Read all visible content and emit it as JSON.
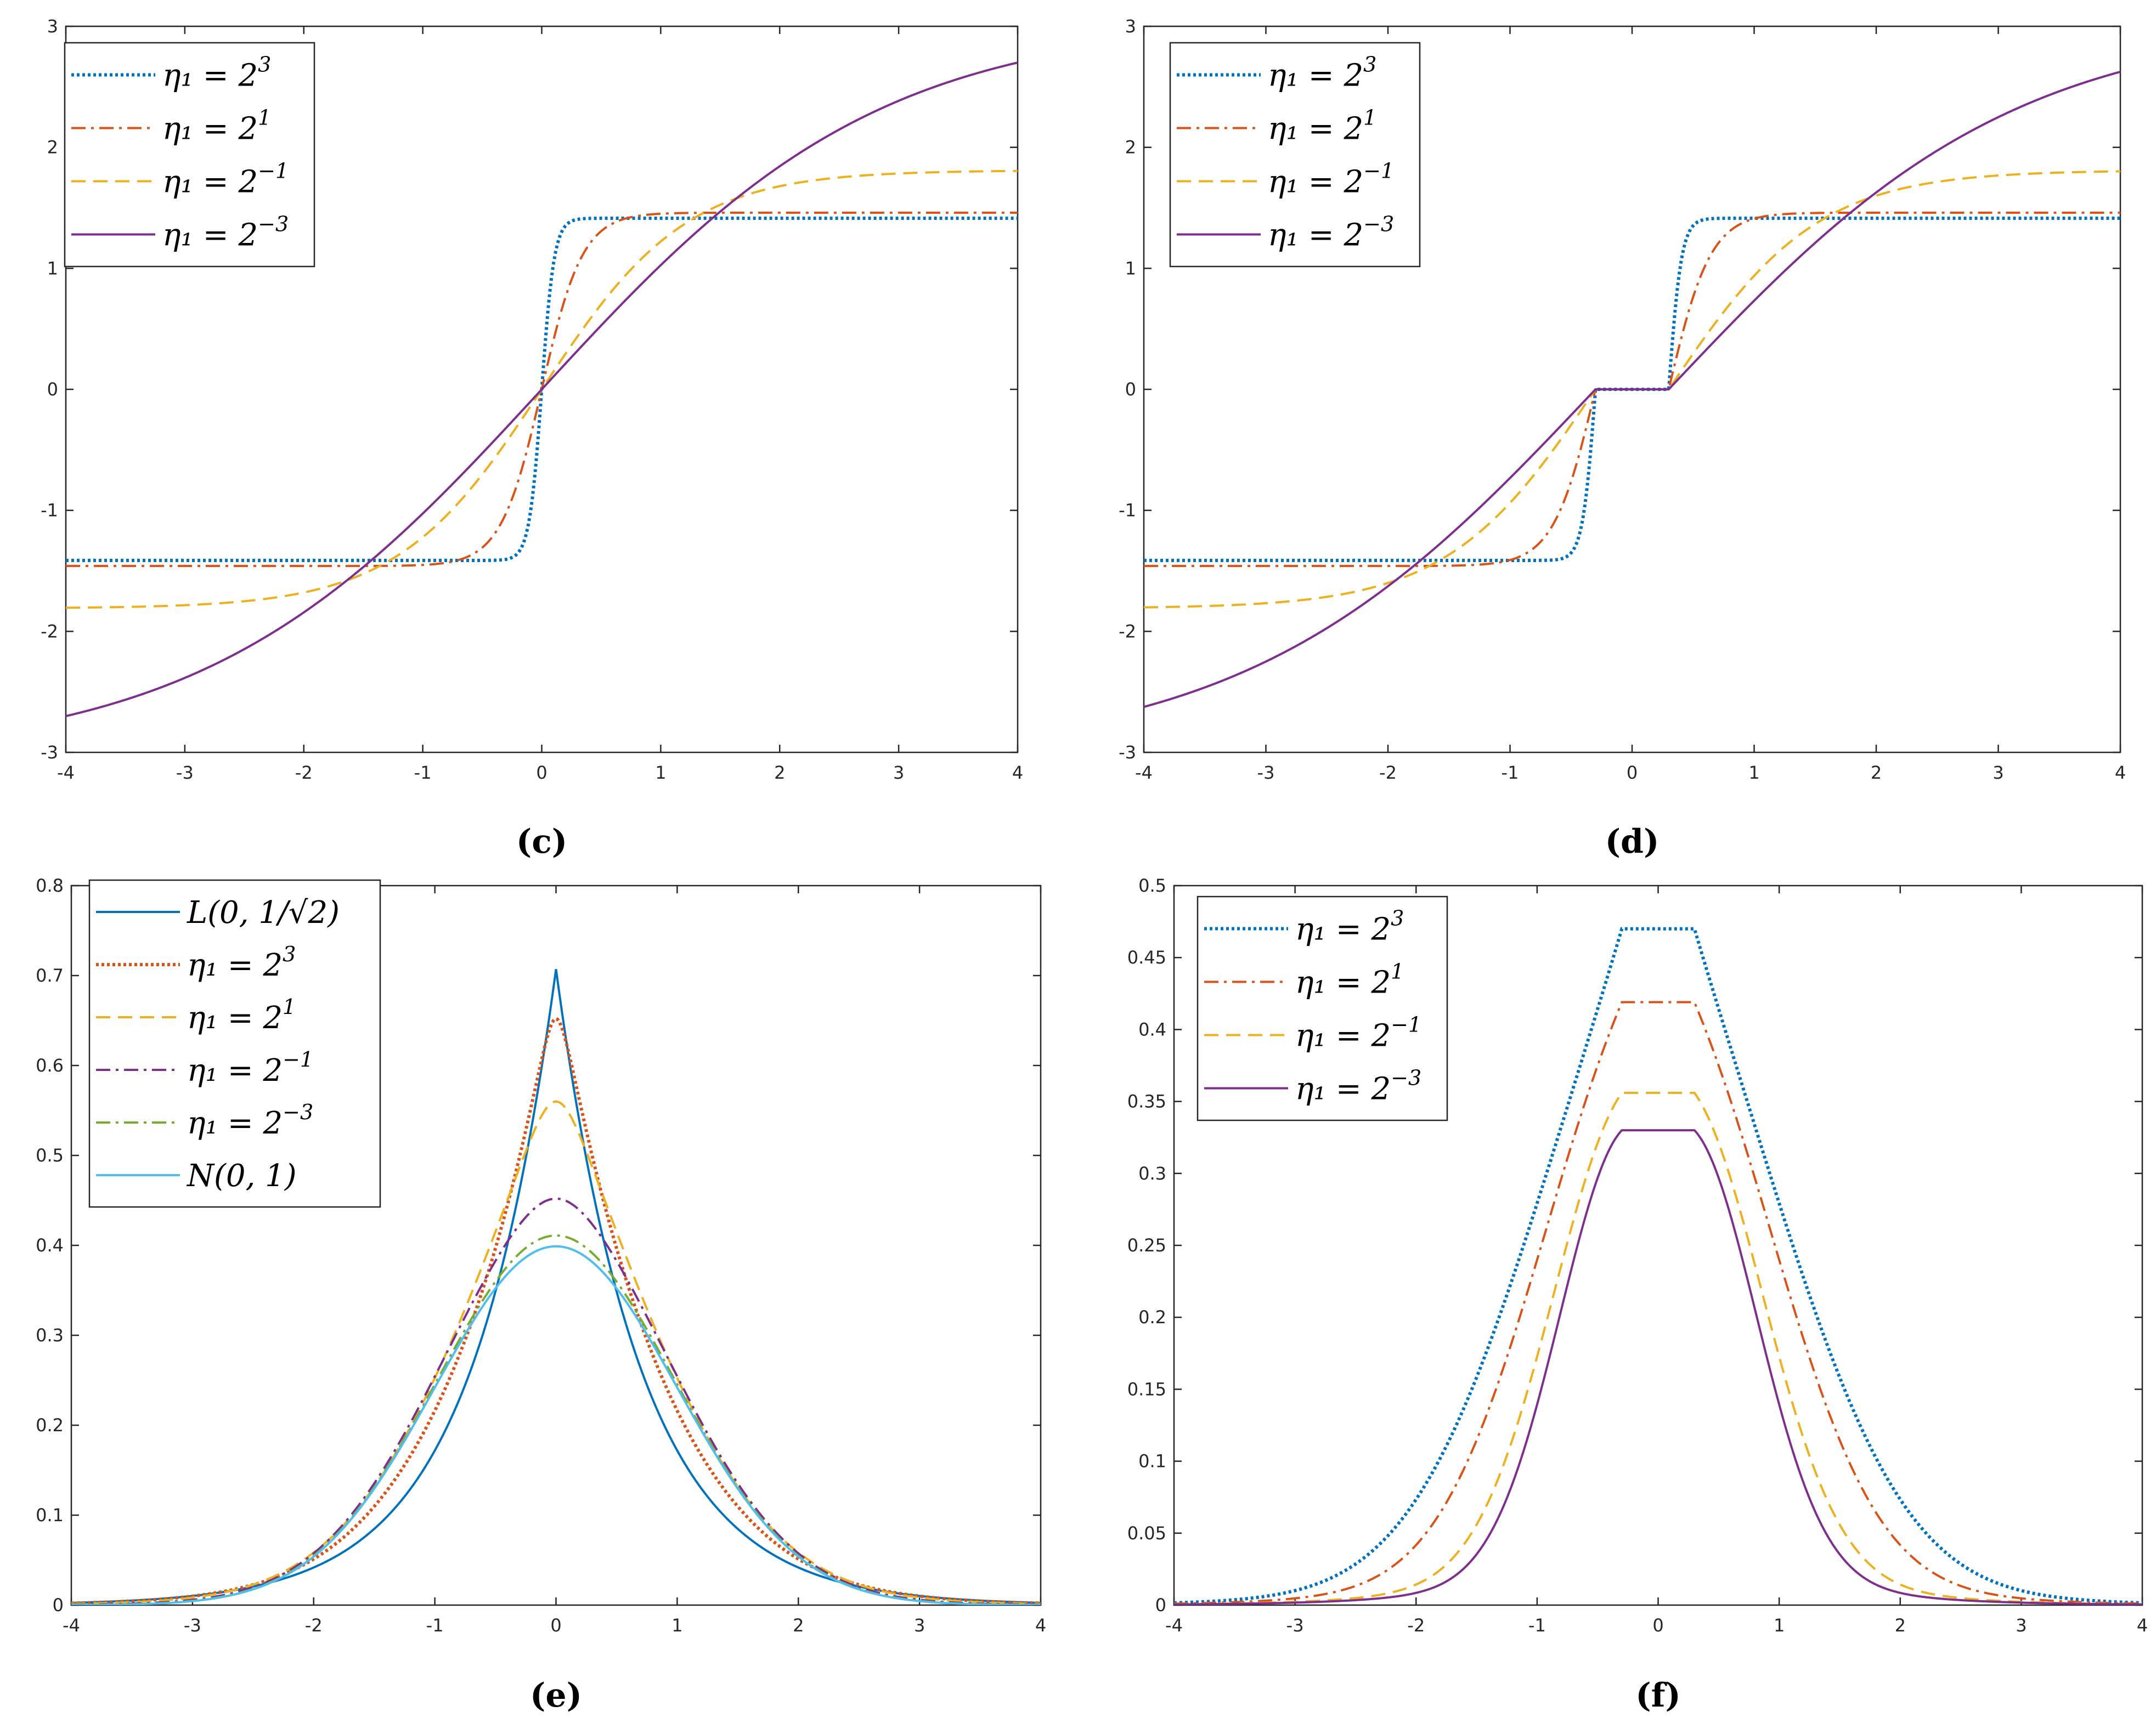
{
  "figure": {
    "panels": [
      "c",
      "d",
      "e",
      "f"
    ]
  },
  "colors": {
    "blue": "#0072BD",
    "orange": "#D95319",
    "yellow": "#EDB120",
    "purple": "#7E2F8E",
    "green": "#77AC30",
    "cyan": "#4DBEEE"
  },
  "chart_data": [
    {
      "id": "c",
      "label": "(c)",
      "type": "line",
      "xlim": [
        -4,
        4
      ],
      "ylim": [
        -3,
        3
      ],
      "xticks": [
        -4,
        -3,
        -2,
        -1,
        0,
        1,
        2,
        3,
        4
      ],
      "yticks": [
        -3,
        -2,
        -1,
        0,
        1,
        2,
        3
      ],
      "x_tick_labels": [
        "-4",
        "-3",
        "-2",
        "-1",
        "0",
        "1",
        "2",
        "3",
        "4"
      ],
      "y_tick_labels": [
        "-3",
        "-2",
        "-1",
        "0",
        "1",
        "2",
        "3"
      ],
      "legend_position": "top-left",
      "function": "ga",
      "series": [
        {
          "name": "η1 = 2^3",
          "base": "η₁ = 2",
          "exp": "3",
          "eta": 8,
          "color": "#0072BD",
          "style": "dotted",
          "dead_zone": 0
        },
        {
          "name": "η1 = 2^1",
          "base": "η₁ = 2",
          "exp": "1",
          "eta": 2,
          "color": "#D95319",
          "style": "dashdot",
          "dead_zone": 0
        },
        {
          "name": "η1 = 2^-1",
          "base": "η₁ = 2",
          "exp": "−1",
          "eta": 0.5,
          "color": "#EDB120",
          "style": "dashed",
          "dead_zone": 0
        },
        {
          "name": "η1 = 2^-3",
          "base": "η₁ = 2",
          "exp": "−3",
          "eta": 0.125,
          "color": "#7E2F8E",
          "style": "solid",
          "dead_zone": 0
        }
      ]
    },
    {
      "id": "d",
      "label": "(d)",
      "type": "line",
      "xlim": [
        -4,
        4
      ],
      "ylim": [
        -3,
        3
      ],
      "xticks": [
        -4,
        -3,
        -2,
        -1,
        0,
        1,
        2,
        3,
        4
      ],
      "yticks": [
        -3,
        -2,
        -1,
        0,
        1,
        2,
        3
      ],
      "x_tick_labels": [
        "-4",
        "-3",
        "-2",
        "-1",
        "0",
        "1",
        "2",
        "3",
        "4"
      ],
      "y_tick_labels": [
        "-3",
        "-2",
        "-1",
        "0",
        "1",
        "2",
        "3"
      ],
      "legend_position": "top-left",
      "function": "ga",
      "series": [
        {
          "name": "η1 = 2^3",
          "base": "η₁ = 2",
          "exp": "3",
          "eta": 8,
          "color": "#0072BD",
          "style": "dotted",
          "dead_zone": 0.3
        },
        {
          "name": "η1 = 2^1",
          "base": "η₁ = 2",
          "exp": "1",
          "eta": 2,
          "color": "#D95319",
          "style": "dashdot",
          "dead_zone": 0.3
        },
        {
          "name": "η1 = 2^-1",
          "base": "η₁ = 2",
          "exp": "−1",
          "eta": 0.5,
          "color": "#EDB120",
          "style": "dashed",
          "dead_zone": 0.3
        },
        {
          "name": "η1 = 2^-3",
          "base": "η₁ = 2",
          "exp": "−3",
          "eta": 0.125,
          "color": "#7E2F8E",
          "style": "solid",
          "dead_zone": 0.3
        }
      ]
    },
    {
      "id": "e",
      "label": "(e)",
      "type": "line",
      "xlim": [
        -4,
        4
      ],
      "ylim": [
        0,
        0.8
      ],
      "xticks": [
        -4,
        -3,
        -2,
        -1,
        0,
        1,
        2,
        3,
        4
      ],
      "yticks": [
        0,
        0.1,
        0.2,
        0.3,
        0.4,
        0.5,
        0.6,
        0.7,
        0.8
      ],
      "x_tick_labels": [
        "-4",
        "-3",
        "-2",
        "-1",
        "0",
        "1",
        "2",
        "3",
        "4"
      ],
      "y_tick_labels": [
        "0",
        "0.1",
        "0.2",
        "0.3",
        "0.4",
        "0.5",
        "0.6",
        "0.7",
        "0.8"
      ],
      "legend_position": "top-left",
      "function": "density",
      "series": [
        {
          "name": "L(0, 1/√2)",
          "base": "L(0, 1/√2)",
          "exp": "",
          "kind": "laplace",
          "peak": 0.707,
          "color": "#0072BD",
          "style": "solid"
        },
        {
          "name": "η1 = 2^3",
          "base": "η₁ = 2",
          "exp": "3",
          "kind": "mix",
          "peak": 0.652,
          "color": "#D95319",
          "style": "dotted"
        },
        {
          "name": "η1 = 2^1",
          "base": "η₁ = 2",
          "exp": "1",
          "kind": "mix",
          "peak": 0.56,
          "color": "#EDB120",
          "style": "dashed"
        },
        {
          "name": "η1 = 2^-1",
          "base": "η₁ = 2",
          "exp": "−1",
          "kind": "mix",
          "peak": 0.452,
          "color": "#7E2F8E",
          "style": "dashdot"
        },
        {
          "name": "η1 = 2^-3",
          "base": "η₁ = 2",
          "exp": "−3",
          "kind": "mix",
          "peak": 0.411,
          "color": "#77AC30",
          "style": "dashdot"
        },
        {
          "name": "N(0, 1)",
          "base": "N(0, 1)",
          "exp": "",
          "kind": "normal",
          "peak": 0.399,
          "color": "#4DBEEE",
          "style": "solid"
        }
      ]
    },
    {
      "id": "f",
      "label": "(f)",
      "type": "line",
      "xlim": [
        -4,
        4
      ],
      "ylim": [
        0,
        0.5
      ],
      "xticks": [
        -4,
        -3,
        -2,
        -1,
        0,
        1,
        2,
        3,
        4
      ],
      "yticks": [
        0,
        0.05,
        0.1,
        0.15,
        0.2,
        0.25,
        0.3,
        0.35,
        0.4,
        0.45,
        0.5
      ],
      "x_tick_labels": [
        "-4",
        "-3",
        "-2",
        "-1",
        "0",
        "1",
        "2",
        "3",
        "4"
      ],
      "y_tick_labels": [
        "0",
        "0.05",
        "0.1",
        "0.15",
        "0.2",
        "0.25",
        "0.3",
        "0.35",
        "0.4",
        "0.45",
        "0.5"
      ],
      "legend_position": "top-left",
      "function": "plateau",
      "series": [
        {
          "name": "η1 = 2^3",
          "base": "η₁ = 2",
          "exp": "3",
          "peak": 0.47,
          "color": "#0072BD",
          "style": "dotted",
          "plateau_halfwidth": 0.3
        },
        {
          "name": "η1 = 2^1",
          "base": "η₁ = 2",
          "exp": "1",
          "peak": 0.419,
          "color": "#D95319",
          "style": "dashdot",
          "plateau_halfwidth": 0.3
        },
        {
          "name": "η1 = 2^-1",
          "base": "η₁ = 2",
          "exp": "−1",
          "peak": 0.356,
          "color": "#EDB120",
          "style": "dashed",
          "plateau_halfwidth": 0.3
        },
        {
          "name": "η1 = 2^-3",
          "base": "η₁ = 2",
          "exp": "−3",
          "peak": 0.33,
          "color": "#7E2F8E",
          "style": "solid",
          "plateau_halfwidth": 0.3
        }
      ]
    }
  ]
}
